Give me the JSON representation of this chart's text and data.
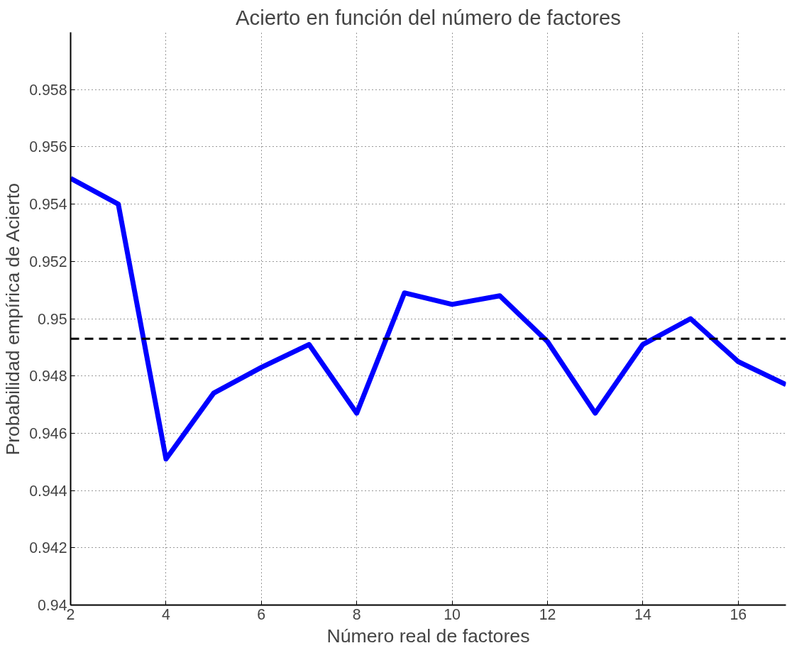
{
  "chart_data": {
    "type": "line",
    "title": "Acierto en función del número de factores",
    "xlabel": "Número real de factores",
    "ylabel": "Probabilidad empírica de Acierto",
    "x": [
      2,
      3,
      4,
      5,
      6,
      7,
      8,
      9,
      10,
      11,
      12,
      13,
      14,
      15,
      16,
      17
    ],
    "series": [
      {
        "color": "#0000ff",
        "values": [
          0.9549,
          0.954,
          0.9451,
          0.9474,
          0.9483,
          0.9491,
          0.9467,
          0.9509,
          0.9505,
          0.9508,
          0.9492,
          0.9467,
          0.9491,
          0.95,
          0.9485,
          0.9477
        ]
      }
    ],
    "xlim": [
      2,
      17
    ],
    "ylim": [
      0.94,
      0.96
    ],
    "xticks": [
      2,
      4,
      6,
      8,
      10,
      12,
      14,
      16
    ],
    "yticks": [
      {
        "value": 0.94,
        "label": "0.94"
      },
      {
        "value": 0.942,
        "label": "0.942"
      },
      {
        "value": 0.944,
        "label": "0.944"
      },
      {
        "value": 0.946,
        "label": "0.946"
      },
      {
        "value": 0.948,
        "label": "0.948"
      },
      {
        "value": 0.95,
        "label": "0.95"
      },
      {
        "value": 0.952,
        "label": "0.952"
      },
      {
        "value": 0.954,
        "label": "0.954"
      },
      {
        "value": 0.956,
        "label": "0.956"
      },
      {
        "value": 0.958,
        "label": "0.958"
      }
    ],
    "ref_lines": [
      {
        "axis": "y",
        "value": 0.9493,
        "label": null,
        "color": "#000000",
        "line_style": "dashed"
      }
    ],
    "grid": true,
    "line_style": "solid",
    "marker": "none"
  }
}
